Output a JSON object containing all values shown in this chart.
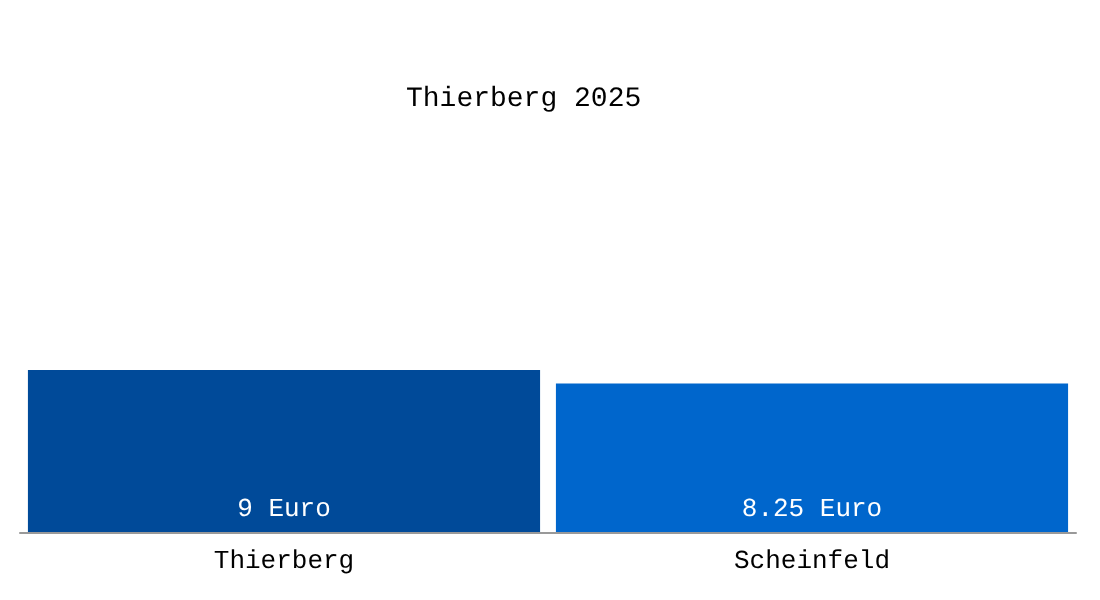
{
  "chart_data": {
    "type": "bar",
    "title": "Thierberg 2025",
    "categories": [
      "Thierberg",
      "Scheinfeld"
    ],
    "values": [
      9,
      8.25
    ],
    "colors": [
      "#004a99",
      "#0066cc"
    ],
    "value_labels": [
      "9 Euro",
      "8.25 Euro"
    ]
  }
}
